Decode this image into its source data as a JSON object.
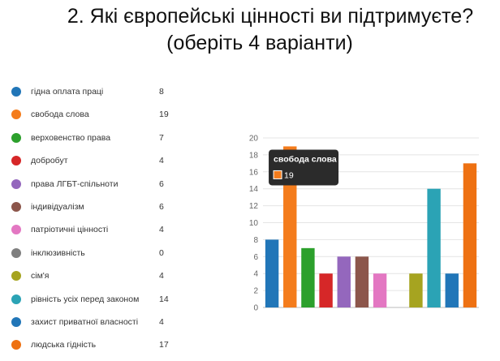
{
  "title": {
    "line1": "2. Які європейські цінності ви підтримуєте?",
    "line2": "(оберіть 4 варіанти)"
  },
  "chart_data": {
    "type": "bar",
    "categories": [
      "гідна оплата праці",
      "свобода слова",
      "верховенство права",
      "добробут",
      "права ЛГБТ-спільноти",
      "індивідуалізм",
      "патріотичні цінності",
      "інклюзивність",
      "сім'я",
      "рівність усіх перед законом",
      "захист приватної власності",
      "людська гідність"
    ],
    "values": [
      8,
      19,
      7,
      4,
      6,
      6,
      4,
      0,
      4,
      14,
      4,
      17
    ],
    "colors": [
      "#2176b8",
      "#f47c1c",
      "#2ca02c",
      "#d62728",
      "#9467bd",
      "#8c564b",
      "#e377c2",
      "#7f7f7f",
      "#a6a420",
      "#2ba3b5",
      "#2176b8",
      "#ee7112"
    ],
    "ylim": [
      0,
      20
    ],
    "yticks": [
      0,
      2,
      4,
      6,
      8,
      10,
      12,
      14,
      16,
      18,
      20
    ],
    "grid": true,
    "legend_position": "left",
    "tooltip": {
      "label": "свобода слова",
      "value": "19",
      "category_index": 1
    }
  }
}
